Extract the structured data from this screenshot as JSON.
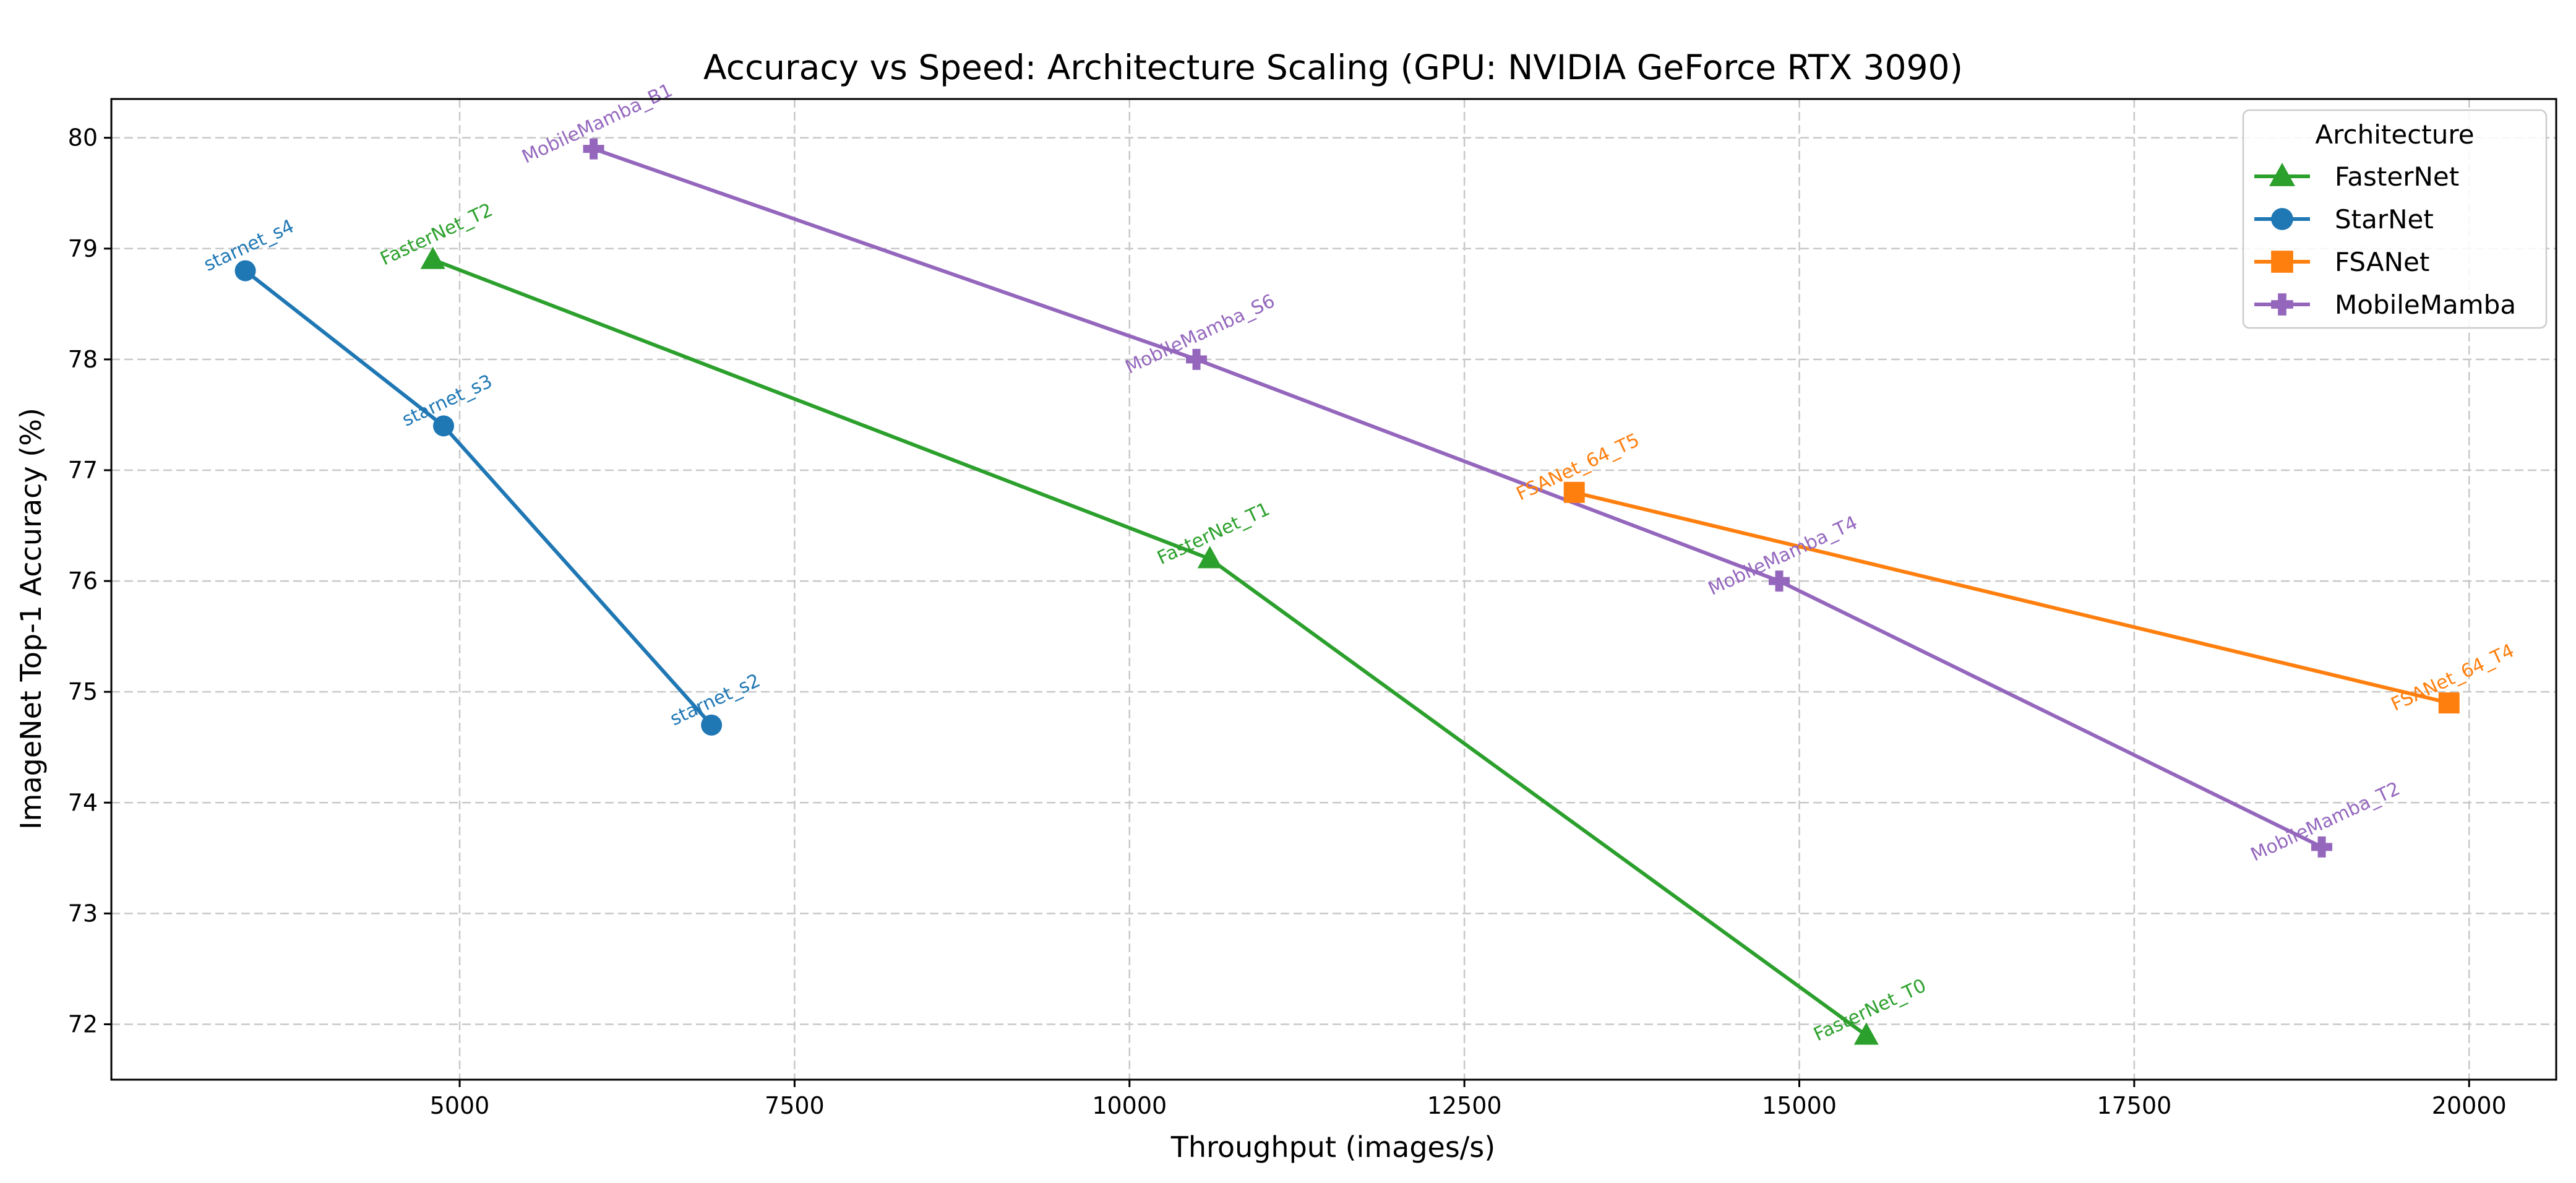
{
  "chart_data": {
    "type": "line",
    "title": "Accuracy vs Speed: Architecture Scaling (GPU: NVIDIA GeForce RTX 3090)",
    "xlabel": "Throughput (images/s)",
    "ylabel": "ImageNet Top-1 Accuracy (%)",
    "xlim": [
      2400,
      20650
    ],
    "ylim": [
      71.5,
      80.35
    ],
    "xticks": [
      5000,
      7500,
      10000,
      12500,
      15000,
      17500,
      20000
    ],
    "yticks": [
      72,
      73,
      74,
      75,
      76,
      77,
      78,
      79,
      80
    ],
    "grid": true,
    "legend": {
      "title": "Architecture",
      "position": "top-right"
    },
    "series": [
      {
        "name": "FasterNet",
        "color": "#2ca02c",
        "marker": "triangle",
        "points": [
          {
            "label": "FasterNet_T2",
            "x": 4800,
            "y": 78.9
          },
          {
            "label": "FasterNet_T1",
            "x": 10600,
            "y": 76.2
          },
          {
            "label": "FasterNet_T0",
            "x": 15500,
            "y": 71.9
          }
        ]
      },
      {
        "name": "StarNet",
        "color": "#1f77b4",
        "marker": "circle",
        "points": [
          {
            "label": "starnet_s4",
            "x": 3400,
            "y": 78.8
          },
          {
            "label": "starnet_s3",
            "x": 4880,
            "y": 77.4
          },
          {
            "label": "starnet_s2",
            "x": 6880,
            "y": 74.7
          }
        ]
      },
      {
        "name": "FSANet",
        "color": "#ff7f0e",
        "marker": "square",
        "points": [
          {
            "label": "FSANet_64_T5",
            "x": 13320,
            "y": 76.8
          },
          {
            "label": "FSANet_64_T4",
            "x": 19850,
            "y": 74.9
          }
        ]
      },
      {
        "name": "MobileMamba",
        "color": "#9467bd",
        "marker": "plus",
        "points": [
          {
            "label": "MobileMamba_B1",
            "x": 6000,
            "y": 79.9
          },
          {
            "label": "MobileMamba_S6",
            "x": 10500,
            "y": 78.0
          },
          {
            "label": "MobileMamba_T4",
            "x": 14850,
            "y": 76.0
          },
          {
            "label": "MobileMamba_T2",
            "x": 18900,
            "y": 73.6
          }
        ]
      }
    ]
  }
}
